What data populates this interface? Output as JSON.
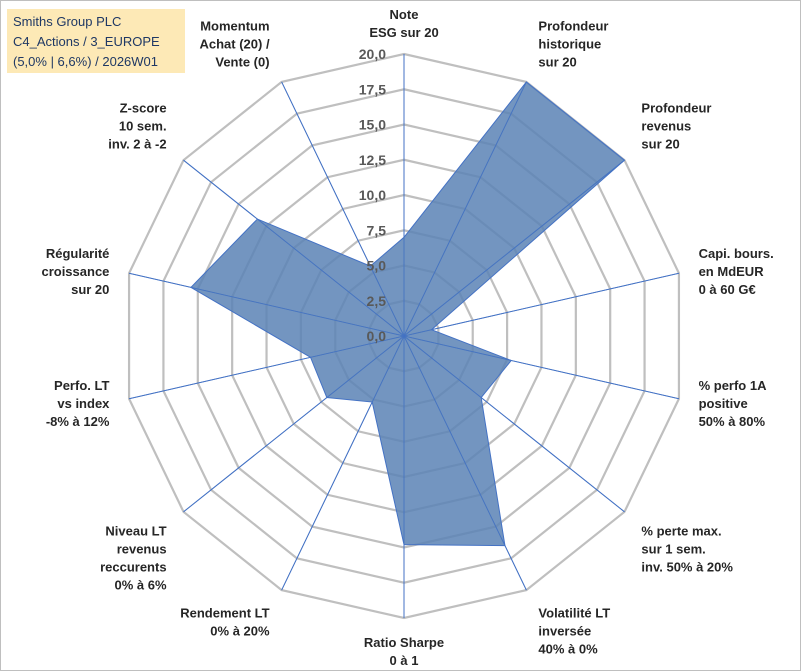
{
  "title_box": {
    "line1": "Smiths Group PLC",
    "line2": "C4_Actions / 3_EUROPE",
    "line3": "(5,0% | 6,6%) / 2026W01",
    "background": "#fde9b6",
    "text_color": "#1f3864"
  },
  "chart_data": {
    "type": "radar",
    "rmin": 0,
    "rmax": 20,
    "tick_step": 2.5,
    "ticks": [
      "0,0",
      "2,5",
      "5,0",
      "7,5",
      "10,0",
      "12,5",
      "15,0",
      "17,5",
      "20,0"
    ],
    "grid_color": "#bfbfbf",
    "axis_color": "#4472c4",
    "fill_color": "#5b83b5",
    "categories": [
      [
        "Note",
        "ESG sur 20"
      ],
      [
        "Profondeur",
        "historique",
        "sur 20"
      ],
      [
        "Profondeur",
        "revenus",
        "sur 20"
      ],
      [
        "Capi. bours.",
        "en MdEUR",
        "0 à 60 G€"
      ],
      [
        "% perfo 1A",
        "positive",
        "50% à 80%"
      ],
      [
        "% perte max.",
        "sur 1 sem.",
        "inv. 50% à 20%"
      ],
      [
        "Volatilité LT",
        "inversée",
        "40% à 0%"
      ],
      [
        "Ratio Sharpe",
        "0 à 1"
      ],
      [
        "Rendement LT",
        "0% à 20%"
      ],
      [
        "Niveau LT",
        "revenus",
        "reccurents",
        "0% à 6%"
      ],
      [
        "Perfo. LT",
        "vs index",
        "-8% à 12%"
      ],
      [
        "Régularité",
        "croissance",
        "sur 20"
      ],
      [
        "Z-score",
        "10 sem.",
        "inv. 2 à -2"
      ],
      [
        "Momentum",
        "Achat (20) /",
        "Vente (0)"
      ]
    ],
    "series": [
      {
        "name": "Smiths Group PLC",
        "values": [
          7.0,
          20.0,
          20.0,
          2.0,
          7.8,
          7.0,
          16.5,
          14.8,
          5.2,
          7.0,
          6.8,
          15.5,
          13.3,
          5.5
        ]
      }
    ]
  }
}
